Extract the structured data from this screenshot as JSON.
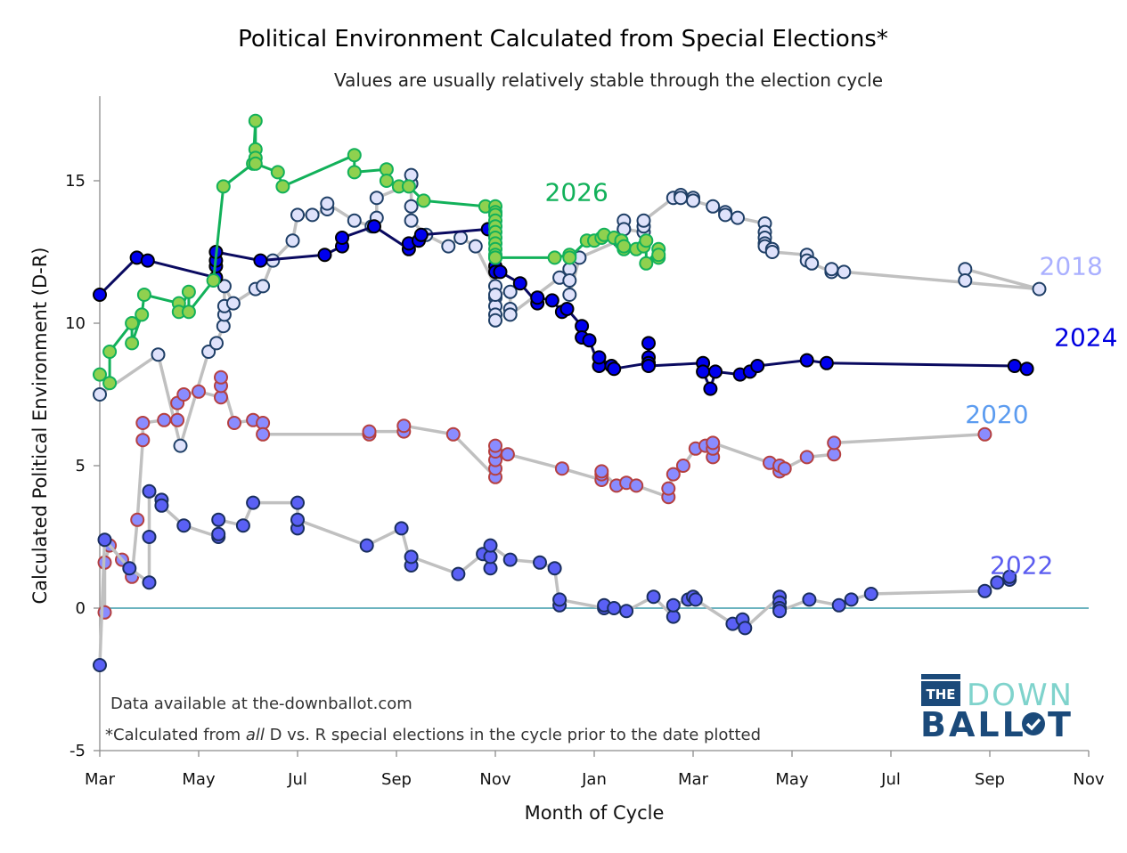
{
  "chart_data": {
    "type": "line",
    "title": "Political Environment Calculated from Special Elections*",
    "subtitle": "Values are usually relatively stable through the election cycle",
    "xlabel": "Month of Cycle",
    "ylabel": "Calculated Political Environment (D-R)",
    "x_unit": "months since March of the year before the election",
    "xlim": [
      0,
      20
    ],
    "ylim": [
      -5,
      18
    ],
    "x_ticks": [
      {
        "value": 0,
        "label": "Mar"
      },
      {
        "value": 2,
        "label": "May"
      },
      {
        "value": 4,
        "label": "Jul"
      },
      {
        "value": 6,
        "label": "Sep"
      },
      {
        "value": 8,
        "label": "Nov"
      },
      {
        "value": 10,
        "label": "Jan"
      },
      {
        "value": 12,
        "label": "Mar"
      },
      {
        "value": 14,
        "label": "May"
      },
      {
        "value": 16,
        "label": "Jul"
      },
      {
        "value": 18,
        "label": "Sep"
      },
      {
        "value": 20,
        "label": "Nov"
      }
    ],
    "y_ticks": [
      {
        "value": -5,
        "label": "-5"
      },
      {
        "value": 0,
        "label": "0"
      },
      {
        "value": 5,
        "label": "5"
      },
      {
        "value": 10,
        "label": "10"
      },
      {
        "value": 15,
        "label": "15"
      }
    ],
    "reference_line": {
      "y": 0,
      "color": "#3a9aaa"
    },
    "grid": false,
    "series": [
      {
        "name": "2018",
        "label_color": "#aab0ff",
        "line_color": "#c0c0c0",
        "marker_fill": "#dfe2fb",
        "marker_edge": "#1f3f66",
        "label_pos": [
          19.0,
          11.7
        ],
        "x": [
          0.0,
          1.18,
          1.63,
          2.2,
          2.36,
          2.5,
          2.52,
          2.52,
          2.52,
          2.7,
          3.15,
          3.3,
          3.5,
          3.9,
          4.0,
          4.3,
          4.6,
          4.6,
          5.15,
          5.5,
          5.6,
          5.6,
          6.3,
          6.3,
          6.3,
          6.3,
          6.6,
          7.05,
          7.3,
          7.6,
          8.0,
          8.0,
          8.0,
          8.0,
          8.0,
          8.0,
          8.3,
          8.3,
          8.3,
          9.3,
          9.5,
          9.5,
          9.5,
          9.7,
          10.5,
          10.6,
          10.6,
          10.6,
          11.0,
          11.0,
          11.0,
          11.6,
          11.75,
          11.75,
          12.0,
          12.0,
          12.4,
          12.65,
          12.65,
          12.9,
          13.45,
          13.45,
          13.45,
          13.45,
          13.45,
          13.6,
          13.6,
          14.3,
          14.3,
          14.4,
          14.8,
          14.8,
          15.05,
          19.0,
          17.5,
          17.5
        ],
        "y": [
          7.5,
          8.9,
          5.7,
          9.0,
          9.3,
          9.9,
          10.3,
          10.6,
          11.3,
          10.7,
          11.2,
          11.3,
          12.2,
          12.9,
          13.8,
          13.8,
          14.0,
          14.2,
          13.6,
          13.4,
          13.7,
          14.4,
          14.9,
          15.2,
          14.1,
          13.6,
          13.1,
          12.7,
          13.0,
          12.7,
          11.3,
          10.9,
          10.6,
          10.3,
          10.1,
          11.0,
          11.1,
          10.5,
          10.3,
          11.6,
          11.9,
          11.5,
          11.0,
          12.3,
          12.9,
          13.3,
          13.6,
          13.3,
          13.2,
          13.4,
          13.6,
          14.4,
          14.5,
          14.4,
          14.4,
          14.3,
          14.1,
          13.9,
          13.8,
          13.7,
          13.5,
          13.2,
          13.0,
          12.8,
          12.7,
          12.6,
          12.5,
          12.4,
          12.2,
          12.1,
          11.8,
          11.9,
          11.8,
          11.2,
          11.9,
          11.5
        ]
      },
      {
        "name": "2020",
        "label_color": "#5c9cf0",
        "line_color": "#c0c0c0",
        "marker_fill": "#8a8cff",
        "marker_edge": "#b54040",
        "label_pos": [
          17.5,
          6.5
        ],
        "x": [
          0.1,
          0.1,
          0.2,
          0.45,
          0.65,
          0.76,
          0.87,
          0.87,
          1.3,
          1.57,
          1.57,
          1.7,
          2.0,
          2.45,
          2.45,
          2.45,
          2.72,
          3.1,
          3.3,
          3.3,
          5.45,
          5.45,
          6.15,
          6.15,
          7.15,
          8.0,
          8.0,
          8.0,
          8.0,
          8.0,
          8.25,
          9.35,
          10.15,
          10.15,
          10.15,
          10.45,
          10.65,
          10.85,
          11.5,
          11.5,
          11.6,
          11.8,
          12.05,
          12.25,
          12.4,
          12.4,
          12.4,
          13.55,
          13.75,
          13.75,
          13.85,
          14.3,
          14.85,
          14.85,
          17.9
        ],
        "y": [
          -0.15,
          1.6,
          2.2,
          1.7,
          1.1,
          3.1,
          5.9,
          6.5,
          6.6,
          6.6,
          7.2,
          7.5,
          7.6,
          7.4,
          7.8,
          8.1,
          6.5,
          6.6,
          6.5,
          6.1,
          6.1,
          6.2,
          6.2,
          6.4,
          6.1,
          4.6,
          4.9,
          5.2,
          5.5,
          5.7,
          5.4,
          4.9,
          4.5,
          4.7,
          4.8,
          4.3,
          4.4,
          4.3,
          3.9,
          4.2,
          4.7,
          5.0,
          5.6,
          5.7,
          5.3,
          5.6,
          5.8,
          5.1,
          4.8,
          5.0,
          4.9,
          5.3,
          5.4,
          5.8,
          6.1
        ]
      },
      {
        "name": "2022",
        "label_color": "#5b5cf0",
        "line_color": "#c0c0c0",
        "marker_fill": "#5a60f5",
        "marker_edge": "#1a2f5e",
        "label_pos": [
          18.0,
          1.2
        ],
        "x": [
          0.0,
          0.1,
          0.6,
          1.0,
          1.0,
          1.0,
          1.25,
          1.25,
          1.7,
          2.4,
          2.4,
          2.4,
          2.9,
          3.1,
          4.0,
          4.0,
          4.0,
          5.4,
          6.1,
          6.3,
          6.3,
          7.25,
          7.75,
          7.9,
          7.9,
          7.9,
          8.3,
          8.9,
          9.2,
          9.3,
          9.3,
          10.2,
          10.2,
          10.4,
          10.65,
          11.2,
          11.6,
          11.6,
          11.9,
          12.0,
          12.05,
          12.8,
          13.0,
          13.05,
          13.75,
          13.75,
          13.75,
          13.75,
          14.35,
          14.95,
          15.2,
          15.6,
          17.9,
          18.15,
          18.4,
          18.4
        ],
        "y": [
          -2.0,
          2.4,
          1.4,
          0.9,
          2.5,
          4.1,
          3.8,
          3.6,
          2.9,
          2.5,
          2.6,
          3.1,
          2.9,
          3.7,
          3.7,
          2.8,
          3.1,
          2.2,
          2.8,
          1.5,
          1.8,
          1.2,
          1.9,
          1.4,
          1.8,
          2.2,
          1.7,
          1.6,
          1.4,
          0.1,
          0.3,
          0.0,
          0.1,
          0.0,
          -0.1,
          0.4,
          -0.3,
          0.1,
          0.3,
          0.4,
          0.3,
          -0.55,
          -0.4,
          -0.7,
          0.4,
          0.2,
          0.0,
          -0.1,
          0.3,
          0.1,
          0.3,
          0.5,
          0.6,
          0.9,
          1.0,
          1.1
        ]
      },
      {
        "name": "2024",
        "label_color": "#0000e0",
        "line_color": "#0a0a60",
        "marker_fill": "#0000ee",
        "marker_edge": "#000000",
        "label_pos": [
          19.3,
          9.2
        ],
        "x": [
          0.0,
          0.75,
          0.97,
          2.35,
          2.35,
          2.35,
          2.35,
          3.25,
          4.55,
          4.9,
          4.9,
          5.55,
          6.25,
          6.25,
          6.45,
          6.5,
          7.85,
          8.0,
          8.0,
          8.1,
          8.5,
          8.85,
          8.85,
          9.15,
          9.35,
          9.45,
          9.75,
          9.75,
          9.9,
          10.1,
          10.1,
          10.35,
          10.4,
          11.1,
          11.1,
          11.1,
          11.1,
          11.1,
          12.2,
          12.2,
          12.35,
          12.45,
          12.95,
          13.15,
          13.3,
          14.3,
          14.7,
          18.5,
          18.75
        ],
        "y": [
          11.0,
          12.3,
          12.2,
          11.6,
          12.0,
          12.2,
          12.5,
          12.2,
          12.4,
          12.7,
          13.0,
          13.4,
          12.6,
          12.8,
          12.9,
          13.1,
          13.3,
          12.0,
          11.8,
          11.8,
          11.4,
          10.7,
          10.9,
          10.8,
          10.4,
          10.5,
          9.9,
          9.5,
          9.4,
          8.5,
          8.8,
          8.5,
          8.4,
          8.6,
          8.8,
          9.3,
          8.6,
          8.5,
          8.6,
          8.3,
          7.7,
          8.3,
          8.2,
          8.3,
          8.5,
          8.7,
          8.6,
          8.5,
          8.4
        ]
      },
      {
        "name": "2026",
        "label_color": "#12b15a",
        "line_color": "#12b15a",
        "marker_fill": "#8fd14f",
        "marker_edge": "#12b15a",
        "label_pos": [
          9.0,
          14.3
        ],
        "x": [
          0.0,
          0.2,
          0.2,
          0.65,
          0.65,
          0.85,
          0.9,
          1.6,
          1.6,
          1.8,
          1.8,
          2.3,
          2.5,
          3.1,
          3.15,
          3.15,
          3.15,
          3.15,
          3.6,
          3.7,
          5.15,
          5.15,
          5.8,
          5.8,
          6.05,
          6.25,
          6.55,
          7.8,
          8.0,
          8.0,
          8.0,
          8.0,
          8.0,
          8.0,
          8.0,
          8.0,
          8.0,
          8.0,
          8.0,
          8.0,
          9.2,
          9.5,
          9.5,
          9.85,
          10.0,
          10.15,
          10.2,
          10.4,
          10.55,
          10.55,
          10.6,
          10.6,
          10.85,
          11.0,
          11.05,
          11.05,
          11.3,
          11.3,
          11.3
        ],
        "y": [
          8.2,
          7.9,
          9.0,
          10.0,
          9.3,
          10.3,
          11.0,
          10.7,
          10.4,
          11.1,
          10.4,
          11.5,
          14.8,
          15.6,
          17.1,
          16.1,
          15.8,
          15.6,
          15.3,
          14.8,
          15.9,
          15.3,
          15.4,
          15.0,
          14.8,
          14.8,
          14.3,
          14.1,
          14.1,
          13.9,
          13.8,
          13.6,
          13.4,
          13.2,
          13.0,
          12.8,
          12.6,
          12.4,
          12.3,
          12.3,
          12.3,
          12.4,
          12.3,
          12.9,
          12.9,
          13.0,
          13.1,
          13.0,
          12.8,
          12.9,
          12.6,
          12.7,
          12.6,
          12.7,
          12.9,
          12.1,
          12.6,
          12.3,
          12.4
        ]
      }
    ],
    "annotations": [
      "Data available at the-downballot.com",
      "*Calculated from all D vs. R special elections in the cycle prior to the date plotted"
    ]
  },
  "notes": {
    "data_source": "Data available at the-downballot.com",
    "footnote_prefix": "*Calculated from ",
    "footnote_italic": "all",
    "footnote_suffix": " D vs. R special elections in the cycle prior to the date plotted"
  },
  "logo": {
    "the": "THE",
    "down": "DOWN",
    "ballot_start": "BALL",
    "ballot_end": "T"
  }
}
